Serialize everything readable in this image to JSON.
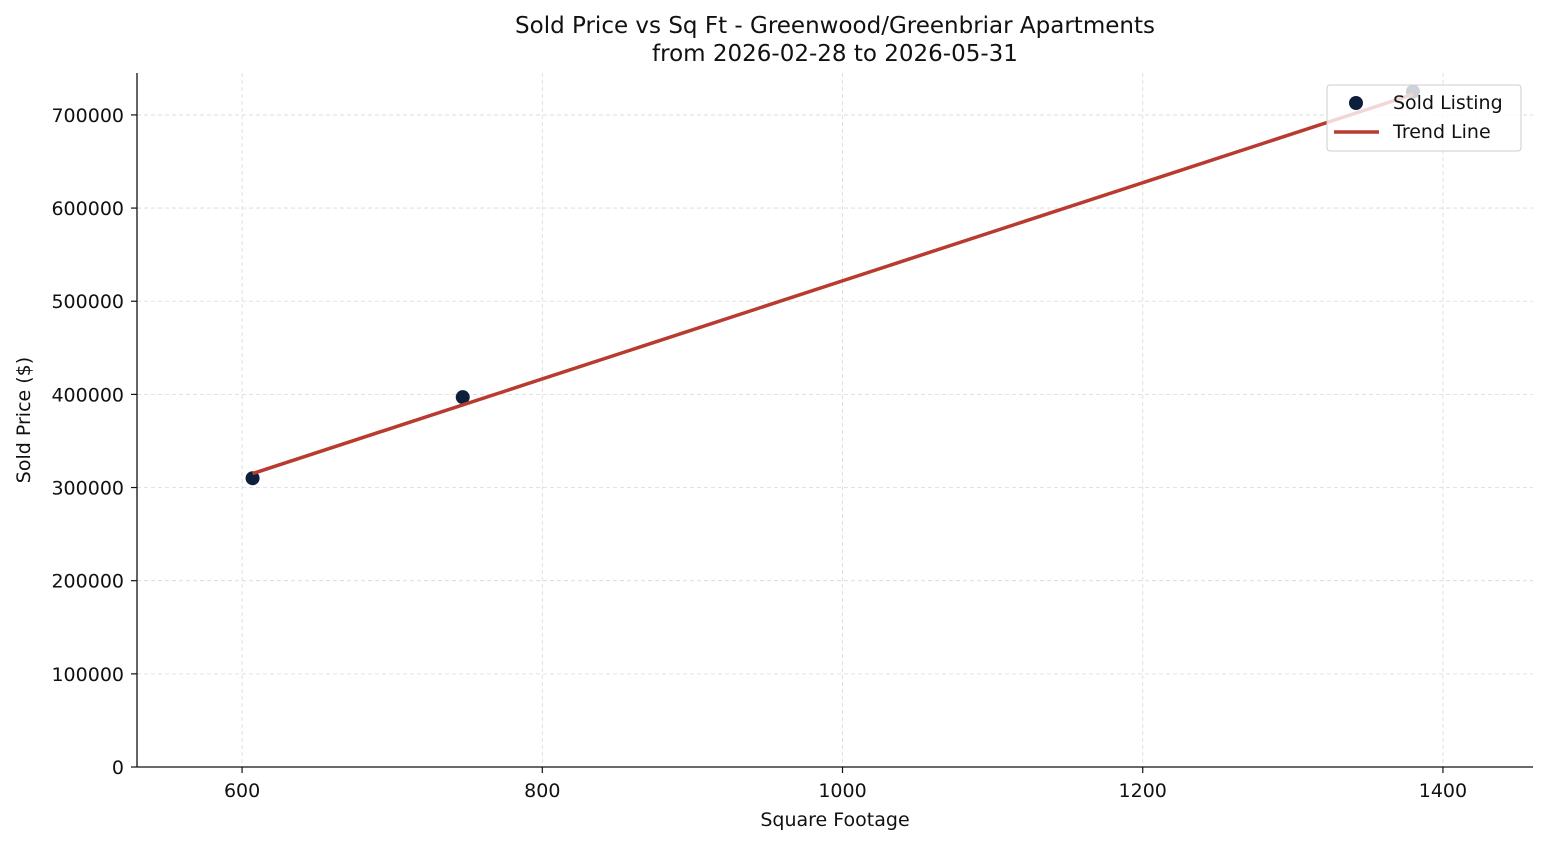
{
  "chart_data": {
    "type": "scatter",
    "title": "Sold Price vs Sq Ft - Greenwood/Greenbriar Apartments",
    "subtitle": "from 2026-02-28 to 2026-05-31",
    "xlabel": "Square Footage",
    "ylabel": "Sold Price ($)",
    "xlim": [
      530,
      1460
    ],
    "ylim": [
      0,
      745000
    ],
    "xticks": [
      600,
      800,
      1000,
      1200,
      1400
    ],
    "yticks": [
      0,
      100000,
      200000,
      300000,
      400000,
      500000,
      600000,
      700000
    ],
    "grid": true,
    "legend_position": "top-right",
    "series": [
      {
        "name": "Sold Listing",
        "kind": "scatter",
        "color": "#0d1f3c",
        "points": [
          {
            "x": 607,
            "y": 310000
          },
          {
            "x": 747,
            "y": 397000
          },
          {
            "x": 1380,
            "y": 725000
          }
        ]
      },
      {
        "name": "Trend Line",
        "kind": "line",
        "color": "#b93b2f",
        "points": [
          {
            "x": 607,
            "y": 315000
          },
          {
            "x": 1380,
            "y": 722000
          }
        ]
      }
    ]
  }
}
